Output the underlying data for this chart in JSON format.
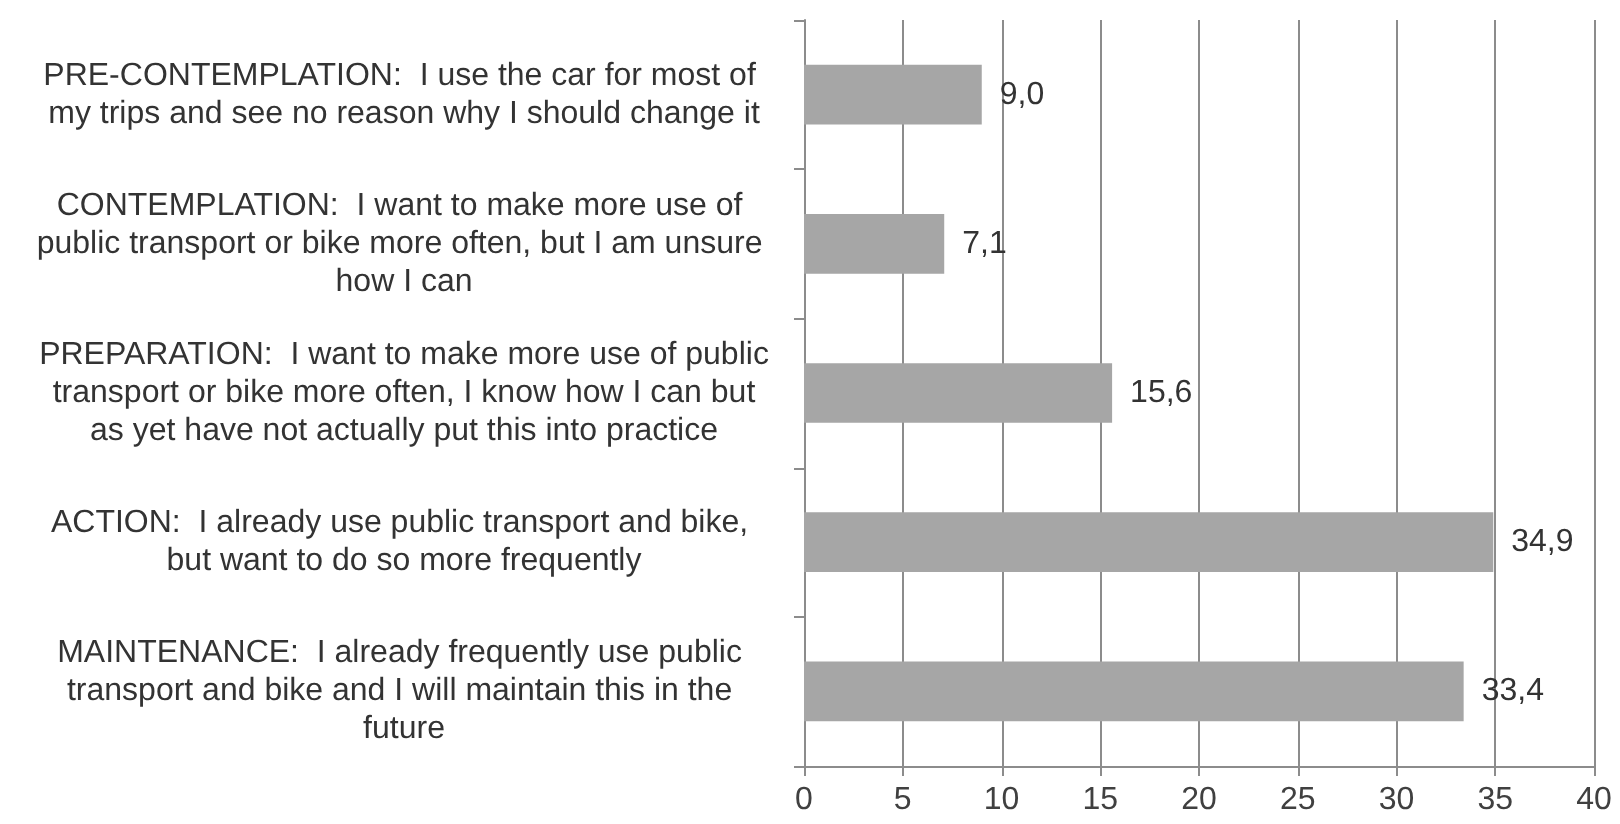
{
  "chart_data": {
    "type": "bar",
    "orientation": "horizontal",
    "categories": [
      "PRE-CONTEMPLATION:  I use the car for most of my trips and see no reason why I should change it",
      "CONTEMPLATION:  I want to make more use of public transport or bike more often, but I am unsure how I can",
      "PREPARATION:  I want to make more use of public transport or bike more often, I know how I can but as yet have not actually put this into practice",
      "ACTION:  I already use public transport and bike, but want to do so more frequently",
      "MAINTENANCE:  I already frequently use public transport and bike and I will maintain this in the future"
    ],
    "values": [
      9.0,
      7.1,
      15.6,
      34.9,
      33.4
    ],
    "value_labels": [
      "9,0",
      "7,1",
      "15,6",
      "34,9",
      "33,4"
    ],
    "color": "#a6a6a6",
    "xlim": [
      0,
      40
    ],
    "xticks": [
      0,
      5,
      10,
      15,
      20,
      25,
      30,
      35,
      40
    ],
    "grid": "x"
  }
}
